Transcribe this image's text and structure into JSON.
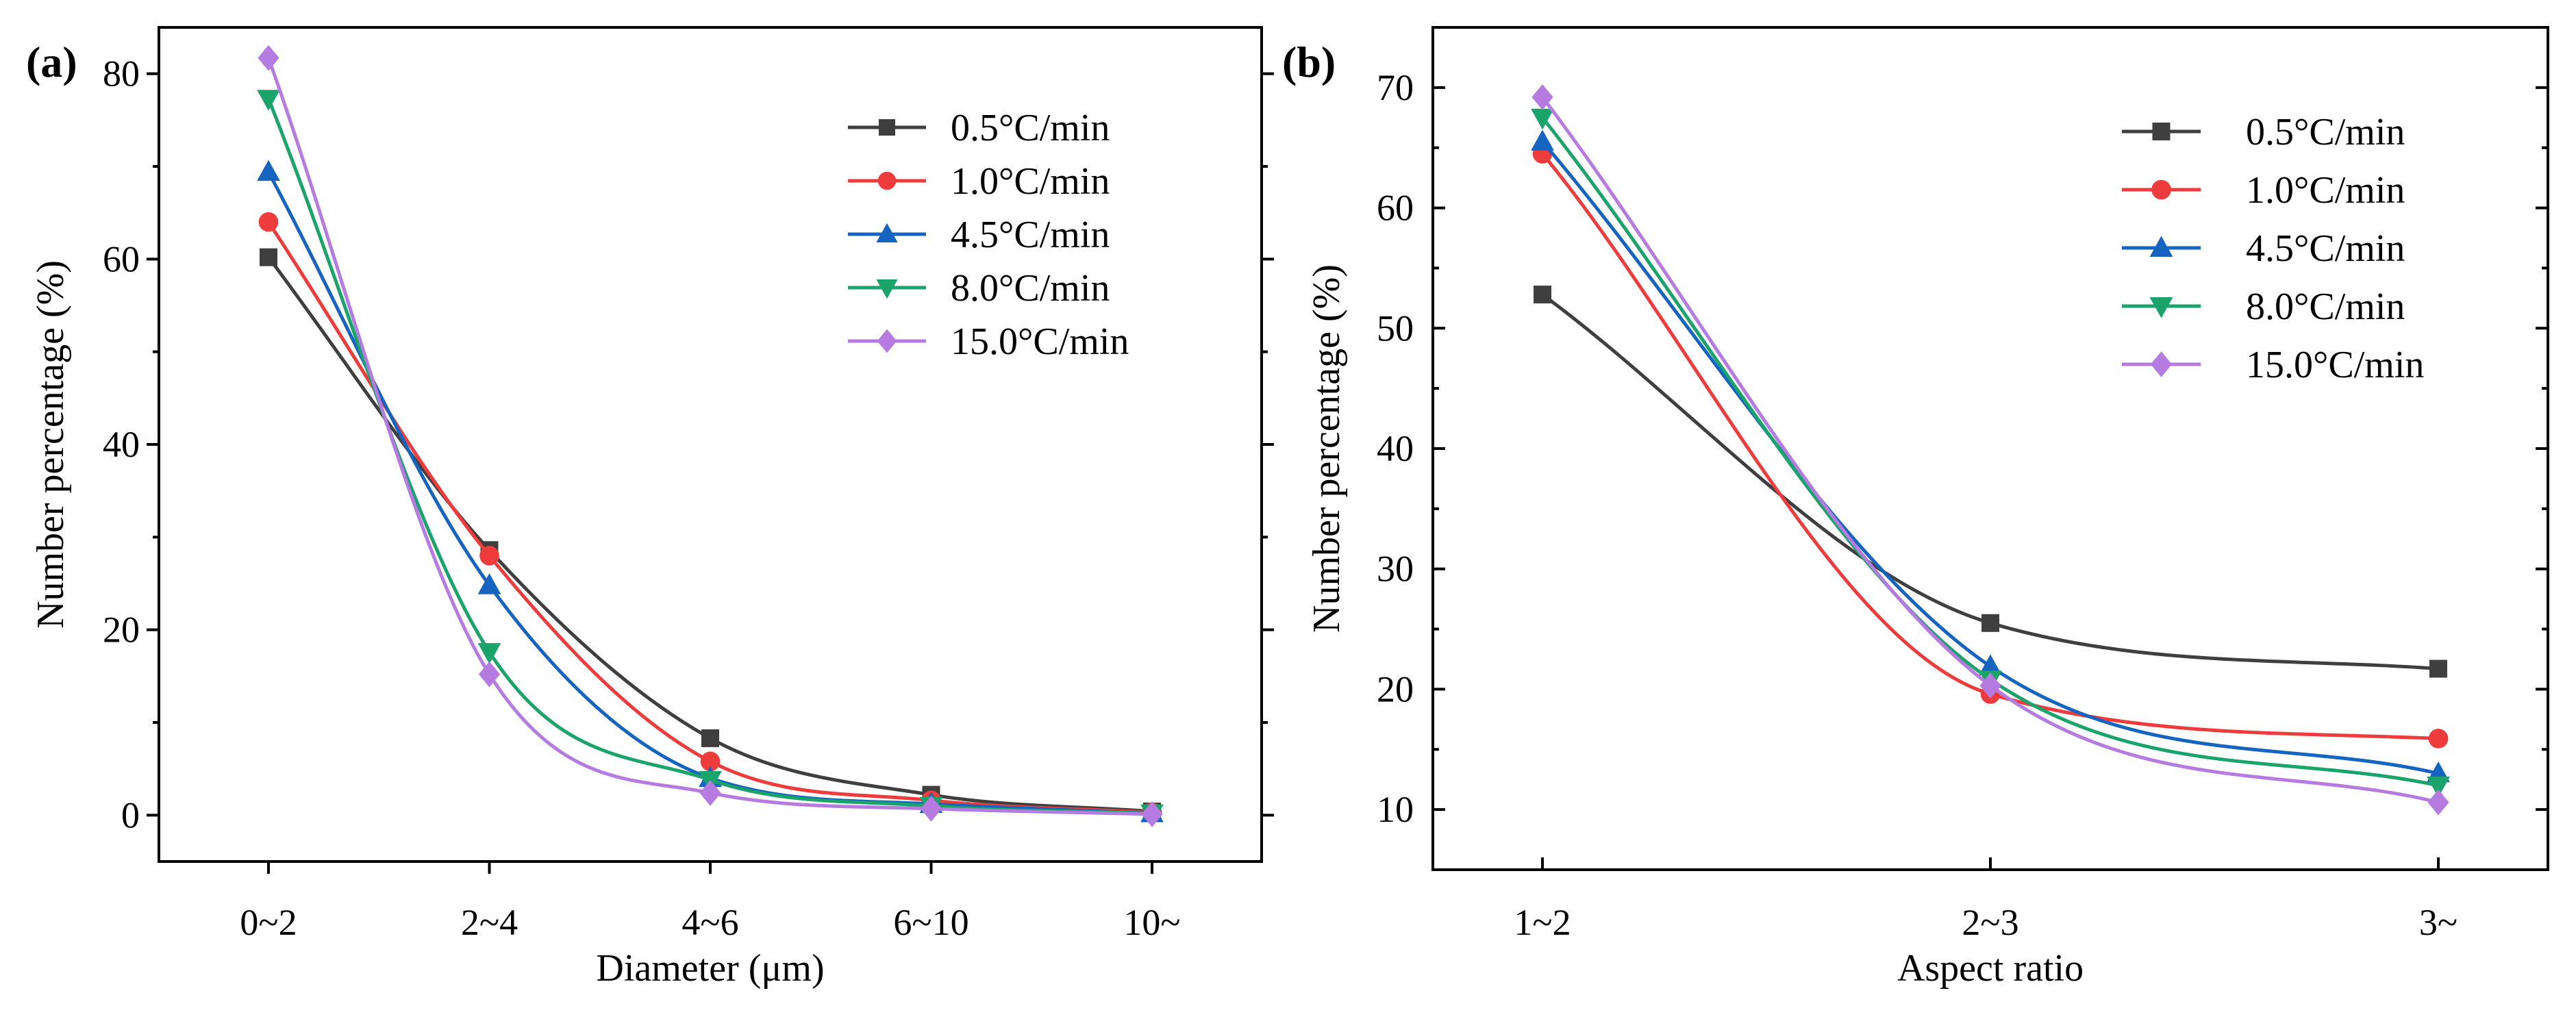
{
  "chart_data": [
    {
      "type": "line",
      "panel_label": "(a)",
      "xlabel": "Diameter (μm)",
      "ylabel": "Number percentage (%)",
      "categories": [
        "0~2",
        "2~4",
        "4~6",
        "6~10",
        "10~"
      ],
      "ylim": [
        -5,
        85
      ],
      "yticks": [
        0,
        20,
        40,
        60,
        80
      ],
      "ytick_labels": [
        "0",
        "20",
        "40",
        "60",
        "80"
      ],
      "grid": false,
      "legend_position": "top-right",
      "series": [
        {
          "name": "0.5°C/min",
          "marker": "square",
          "color": "#3f3f3f",
          "values": [
            60.2,
            28.6,
            8.3,
            2.2,
            0.4
          ]
        },
        {
          "name": "1.0°C/min",
          "marker": "circle",
          "color": "#ee3b3b",
          "values": [
            64.0,
            28.0,
            5.8,
            1.6,
            0.3
          ]
        },
        {
          "name": "4.5°C/min",
          "marker": "triangle-up",
          "color": "#1565c0",
          "values": [
            69.4,
            24.8,
            4.0,
            1.2,
            0.2
          ]
        },
        {
          "name": "8.0°C/min",
          "marker": "triangle-down",
          "color": "#1aa36a",
          "values": [
            77.3,
            17.6,
            3.8,
            1.0,
            0.2
          ]
        },
        {
          "name": "15.0°C/min",
          "marker": "diamond",
          "color": "#b57be0",
          "values": [
            81.7,
            15.2,
            2.4,
            0.7,
            0.1
          ]
        }
      ]
    },
    {
      "type": "line",
      "panel_label": "(b)",
      "xlabel": "Aspect ratio",
      "ylabel": "Number percentage (%)",
      "categories": [
        "1~2",
        "2~3",
        "3~"
      ],
      "ylim": [
        5,
        75
      ],
      "yticks": [
        10,
        20,
        30,
        40,
        50,
        60,
        70
      ],
      "ytick_labels": [
        "10",
        "20",
        "30",
        "40",
        "50",
        "60",
        "70"
      ],
      "grid": false,
      "legend_position": "top-right",
      "series": [
        {
          "name": "0.5°C/min",
          "marker": "square",
          "color": "#3f3f3f",
          "values": [
            52.8,
            25.5,
            21.7
          ]
        },
        {
          "name": "1.0°C/min",
          "marker": "circle",
          "color": "#ee3b3b",
          "values": [
            64.5,
            19.6,
            15.9
          ]
        },
        {
          "name": "4.5°C/min",
          "marker": "triangle-up",
          "color": "#1565c0",
          "values": [
            65.5,
            21.9,
            13.0
          ]
        },
        {
          "name": "8.0°C/min",
          "marker": "triangle-down",
          "color": "#1aa36a",
          "values": [
            67.5,
            20.8,
            12.0
          ]
        },
        {
          "name": "15.0°C/min",
          "marker": "diamond",
          "color": "#b57be0",
          "values": [
            69.2,
            20.3,
            10.6
          ]
        }
      ]
    }
  ]
}
